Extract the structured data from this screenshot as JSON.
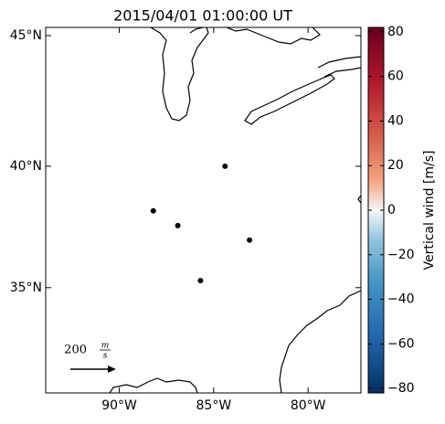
{
  "chart_data": {
    "type": "scatter",
    "title": "2015/04/01 01:00:00 UT",
    "x": [
      -84.4,
      -88.2,
      -86.9,
      -83.1,
      -85.7
    ],
    "values": [
      40.0,
      38.2,
      37.6,
      37.0,
      35.3
    ],
    "color": "#000000",
    "projection": "mercator",
    "xlim": [
      -93.9,
      -77.2
    ],
    "ylim": [
      30.4,
      45.3
    ],
    "xticks": [
      {
        "value": -90,
        "label": "90°W"
      },
      {
        "value": -85,
        "label": "85°W"
      },
      {
        "value": -80,
        "label": "80°W"
      }
    ],
    "yticks": [
      {
        "value": 35,
        "label": "35°N"
      },
      {
        "value": 40,
        "label": "40°N"
      },
      {
        "value": 45,
        "label": "45°N"
      }
    ],
    "colorbar_label": "Vertical wind [m/s]",
    "clim": [
      -82,
      82
    ],
    "cticks": [
      {
        "value": -80,
        "label": "−80"
      },
      {
        "value": -60,
        "label": "−60"
      },
      {
        "value": -40,
        "label": "−40"
      },
      {
        "value": -20,
        "label": "−20"
      },
      0,
      20,
      40,
      60,
      80
    ],
    "quiver_label": "200",
    "quiver_unit_num": "m",
    "quiver_unit_den": "s"
  }
}
